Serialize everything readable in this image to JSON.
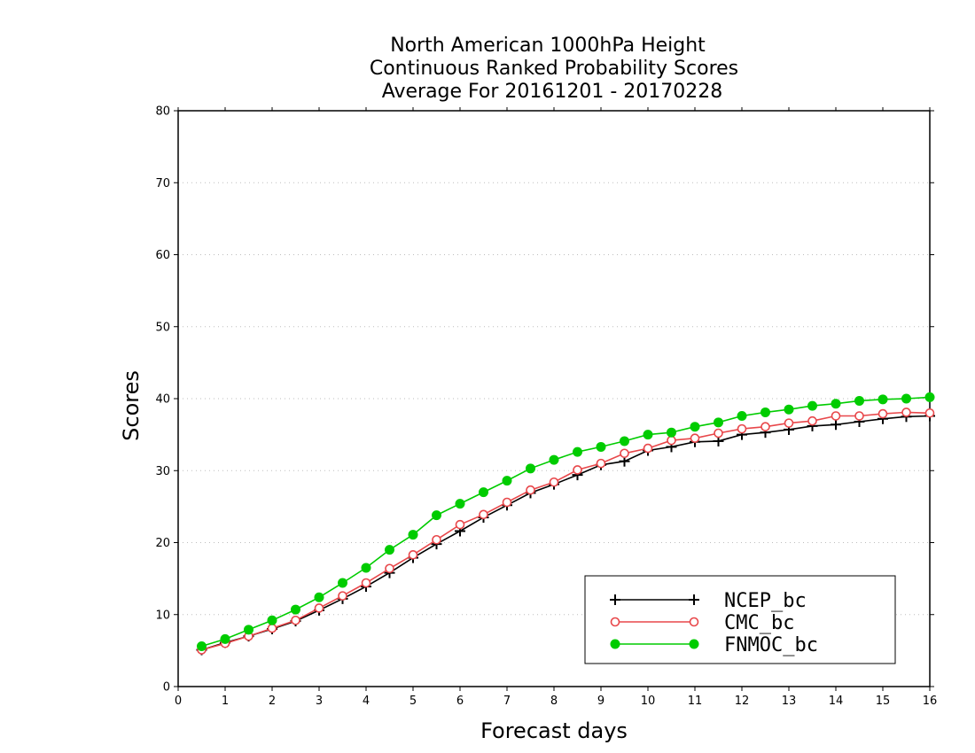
{
  "chart_data": {
    "type": "line",
    "title_lines": [
      "North American 1000hPa Height",
      "Continuous Ranked Probability Scores",
      "Average For 20161201 - 20170228"
    ],
    "xlabel": "Forecast days",
    "ylabel": "Scores",
    "xlim": [
      0,
      16
    ],
    "ylim": [
      0,
      80
    ],
    "x_ticks": [
      0,
      1,
      2,
      3,
      4,
      5,
      6,
      7,
      8,
      9,
      10,
      11,
      12,
      13,
      14,
      15,
      16
    ],
    "y_ticks": [
      0,
      10,
      20,
      30,
      40,
      50,
      60,
      70,
      80
    ],
    "grid": "horizontal dotted",
    "legend_position": "bottom-right",
    "x": [
      0.5,
      1,
      1.5,
      2,
      2.5,
      3,
      3.5,
      4,
      4.5,
      5,
      5.5,
      6,
      6.5,
      7,
      7.5,
      8,
      8.5,
      9,
      9.5,
      10,
      10.5,
      11,
      11.5,
      12,
      12.5,
      13,
      13.5,
      14,
      14.5,
      15,
      15.5,
      16
    ],
    "series": [
      {
        "name": "NCEP_bc",
        "color": "#000000",
        "marker": "plus",
        "values": [
          5.1,
          6.1,
          7.0,
          8.0,
          9.1,
          10.6,
          12.2,
          13.9,
          15.8,
          17.9,
          19.8,
          21.6,
          23.5,
          25.2,
          26.9,
          28.1,
          29.4,
          30.8,
          31.3,
          32.8,
          33.3,
          34.0,
          34.1,
          35.0,
          35.3,
          35.7,
          36.2,
          36.4,
          36.8,
          37.2,
          37.5,
          37.6
        ]
      },
      {
        "name": "CMC_bc",
        "color": "#e8474a",
        "marker": "open-circle",
        "values": [
          5.1,
          6.0,
          7.0,
          8.1,
          9.2,
          10.9,
          12.6,
          14.4,
          16.4,
          18.3,
          20.4,
          22.5,
          23.9,
          25.6,
          27.3,
          28.4,
          30.1,
          31.0,
          32.4,
          33.1,
          34.2,
          34.5,
          35.2,
          35.8,
          36.1,
          36.6,
          36.9,
          37.6,
          37.6,
          37.9,
          38.1,
          38.0
        ]
      },
      {
        "name": "FNMOC_bc",
        "color": "#00cc00",
        "marker": "filled-circle",
        "values": [
          5.6,
          6.6,
          7.9,
          9.2,
          10.7,
          12.4,
          14.4,
          16.5,
          19.0,
          21.1,
          23.8,
          25.4,
          27.0,
          28.6,
          30.3,
          31.5,
          32.6,
          33.3,
          34.1,
          35.0,
          35.3,
          36.1,
          36.7,
          37.6,
          38.1,
          38.5,
          39.0,
          39.3,
          39.7,
          39.9,
          40.0,
          40.2
        ]
      }
    ]
  }
}
